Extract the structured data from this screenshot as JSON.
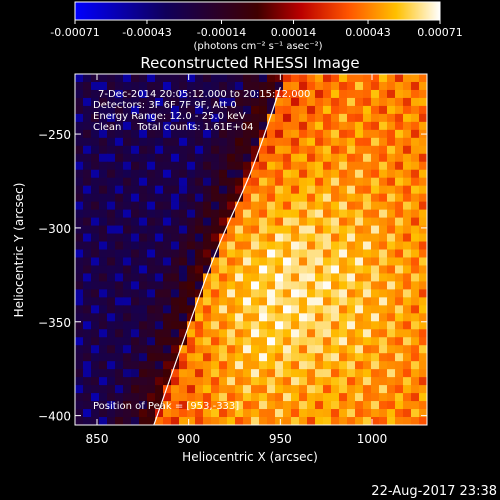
{
  "chart_data": {
    "type": "heatmap",
    "title": "Reconstructed RHESSI Image",
    "xlabel": "Heliocentric X (arcsec)",
    "ylabel": "Heliocentric Y (arcsec)",
    "xlim": [
      838,
      1030
    ],
    "ylim": [
      -405,
      -218
    ],
    "xticks": [
      850,
      900,
      950,
      1000
    ],
    "yticks": [
      -250,
      -300,
      -350,
      -400
    ],
    "colorbar": {
      "ticks": [
        "-0.00071",
        "-0.00043",
        "-0.00014",
        "0.00014",
        "0.00043",
        "0.00071"
      ],
      "range": [
        -0.00071,
        0.00071
      ],
      "unit_label": "(photons cm⁻² s⁻¹ asec⁻²)",
      "colors": [
        "#0000ff",
        "#000033",
        "#880000",
        "#ff4400",
        "#ffaa00",
        "#ffffff"
      ]
    },
    "annotations": [
      "7-Dec-2014 20:05:12.000 to 20:15:12.000",
      "Detectors: 3F 6F 7F 9F, Att 0",
      "Energy Range: 12.0 - 25.0 keV",
      "Clean     Total counts: 1.61E+04",
      "Position of Peak = [953,-333]"
    ],
    "limb_curve": [
      [
        881,
        -405
      ],
      [
        912,
        -320
      ],
      [
        934,
        -270
      ],
      [
        950,
        -225
      ]
    ],
    "peak": [
      953,
      -333
    ],
    "grid": false
  },
  "footer": {
    "timestamp": "22-Aug-2017 23:38"
  }
}
